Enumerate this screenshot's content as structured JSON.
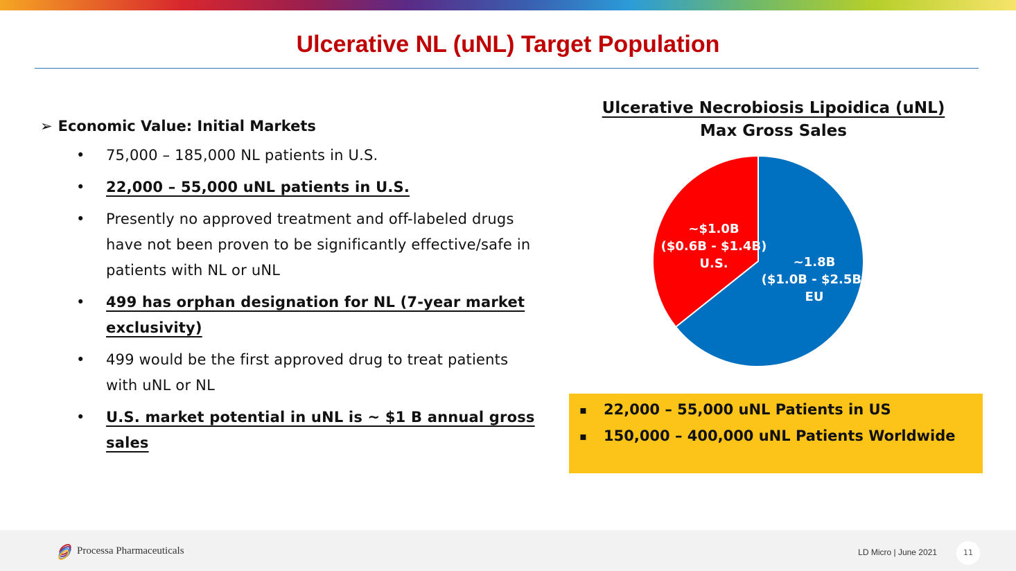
{
  "header": {
    "title": "Ulcerative NL (uNL) Target Population"
  },
  "left": {
    "heading": "Economic Value: Initial Markets",
    "bullets": [
      {
        "text": "75,000 – 185,000 NL patients in U.S.",
        "emphasis": false
      },
      {
        "text": "22,000 – 55,000 uNL patients in U.S.",
        "emphasis": true
      },
      {
        "text": "Presently no approved treatment and off-labeled drugs have not been proven to be significantly effective/safe in patients with NL or uNL",
        "emphasis": false
      },
      {
        "text": "499 has orphan designation for NL (7-year market exclusivity)",
        "emphasis": true
      },
      {
        "text": "499 would be the first approved drug to treat patients with uNL or NL",
        "emphasis": false
      },
      {
        "text": "U.S. market potential in uNL is ~ $1 B annual gross sales",
        "emphasis": true
      }
    ]
  },
  "chart_data": {
    "type": "pie",
    "title": "Ulcerative Necrobiosis Lipoidica (uNL)",
    "subtitle": "Max Gross Sales",
    "slices": [
      {
        "name": "U.S.",
        "value": 1.0,
        "label": "~$1.0B",
        "range": "($0.6B - $1.4B)",
        "color": "#ff0000"
      },
      {
        "name": "EU",
        "value": 1.8,
        "label": "~1.8B",
        "range": "($1.0B - $2.5B)",
        "color": "#0070c0"
      }
    ]
  },
  "callout": {
    "items": [
      "22,000 – 55,000 uNL Patients in US",
      "150,000 – 400,000 uNL Patients Worldwide"
    ]
  },
  "footer": {
    "company": "Processa Pharmaceuticals",
    "event": "LD Micro | June 2021",
    "page": "11"
  }
}
